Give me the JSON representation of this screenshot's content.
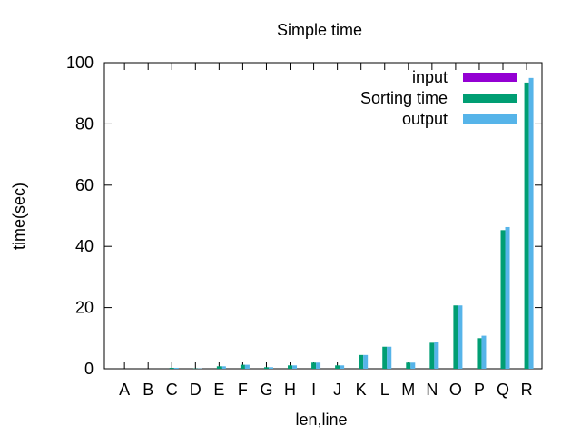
{
  "chart_data": {
    "type": "bar",
    "title": "Simple time",
    "xlabel": "len,line",
    "ylabel": "time(sec)",
    "ylim": [
      0,
      100
    ],
    "yticks": [
      0,
      20,
      40,
      60,
      80,
      100
    ],
    "grid": false,
    "legend_position": "top-right",
    "categories": [
      "A",
      "B",
      "C",
      "D",
      "E",
      "F",
      "G",
      "H",
      "I",
      "J",
      "K",
      "L",
      "M",
      "N",
      "O",
      "P",
      "Q",
      "R"
    ],
    "series": [
      {
        "name": "input",
        "color": "#9400d3",
        "values": [
          0,
          0,
          0,
          0,
          0,
          0,
          0,
          0,
          0,
          0,
          0,
          0,
          0,
          0,
          0,
          0,
          0,
          0
        ]
      },
      {
        "name": "Sorting time",
        "color": "#009e73",
        "values": [
          0,
          0,
          0.3,
          0.1,
          0.8,
          1.3,
          0.5,
          1.1,
          2.0,
          1.1,
          4.5,
          7.2,
          2.0,
          8.5,
          20.7,
          10.0,
          45.3,
          93.5
        ]
      },
      {
        "name": "output",
        "color": "#56b4e9",
        "values": [
          0,
          0,
          0.3,
          0.1,
          0.8,
          1.3,
          0.5,
          1.1,
          2.0,
          1.1,
          4.5,
          7.2,
          2.0,
          8.7,
          20.7,
          10.8,
          46.3,
          95.0
        ]
      }
    ]
  }
}
